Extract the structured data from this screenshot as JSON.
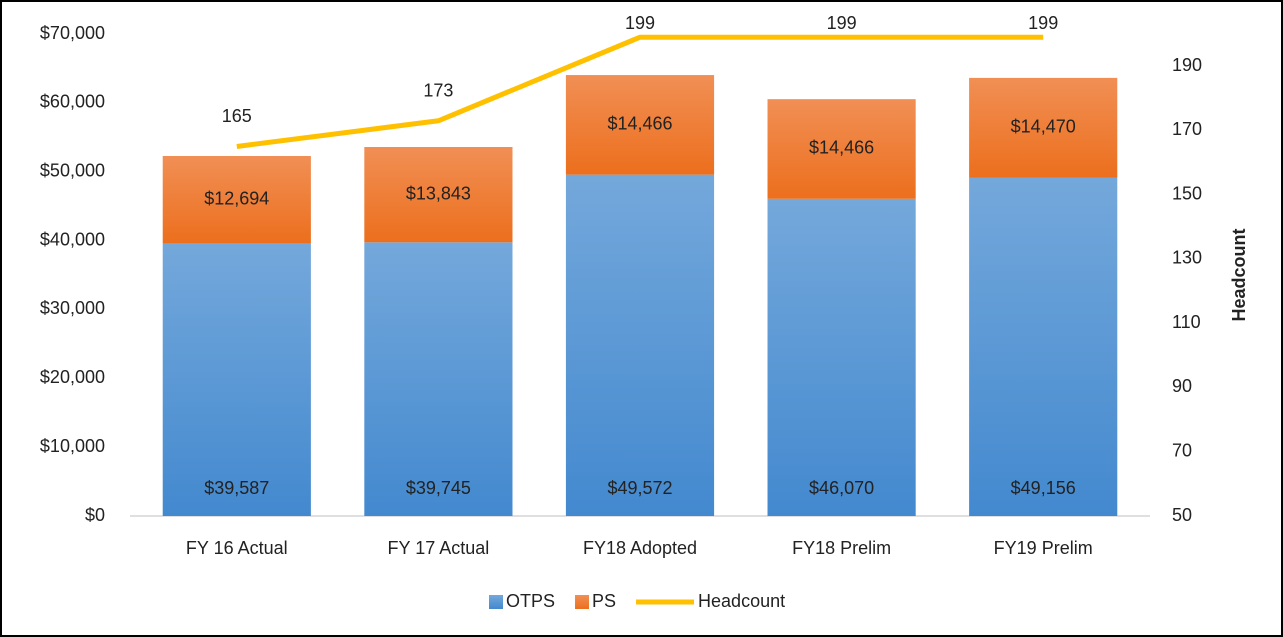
{
  "chart_data": {
    "type": "bar",
    "stacked": true,
    "categories": [
      "FY 16 Actual",
      "FY 17 Actual",
      "FY18 Adopted",
      "FY18 Prelim",
      "FY19 Prelim"
    ],
    "series": [
      {
        "name": "OTPS",
        "color": "#5b9bd5",
        "values": [
          39587,
          39745,
          49572,
          46070,
          49156
        ],
        "value_labels": [
          "$39,587",
          "$39,745",
          "$49,572",
          "$46,070",
          "$49,156"
        ]
      },
      {
        "name": "PS",
        "color": "#ed7d31",
        "values": [
          12694,
          13843,
          14466,
          14466,
          14470
        ],
        "value_labels": [
          "$12,694",
          "$13,843",
          "$14,466",
          "$14,466",
          "$14,470"
        ]
      },
      {
        "name": "Headcount",
        "type": "line",
        "axis": "y2",
        "color": "#ffc000",
        "values": [
          165,
          173,
          199,
          199,
          199
        ]
      }
    ],
    "ylim": [
      0,
      70000
    ],
    "yticks": [
      {
        "value": 0,
        "label": "$0"
      },
      {
        "value": 10000,
        "label": "$10,000"
      },
      {
        "value": 20000,
        "label": "$20,000"
      },
      {
        "value": 30000,
        "label": "$30,000"
      },
      {
        "value": 40000,
        "label": "$40,000"
      },
      {
        "value": 50000,
        "label": "$50,000"
      },
      {
        "value": 60000,
        "label": "$60,000"
      },
      {
        "value": 70000,
        "label": "$70,000"
      }
    ],
    "y2lim": [
      50,
      200
    ],
    "y2ticks": [
      50,
      70,
      90,
      110,
      130,
      150,
      170,
      190
    ],
    "y2label": "Headcount",
    "grid": false,
    "legend": "bottom"
  }
}
